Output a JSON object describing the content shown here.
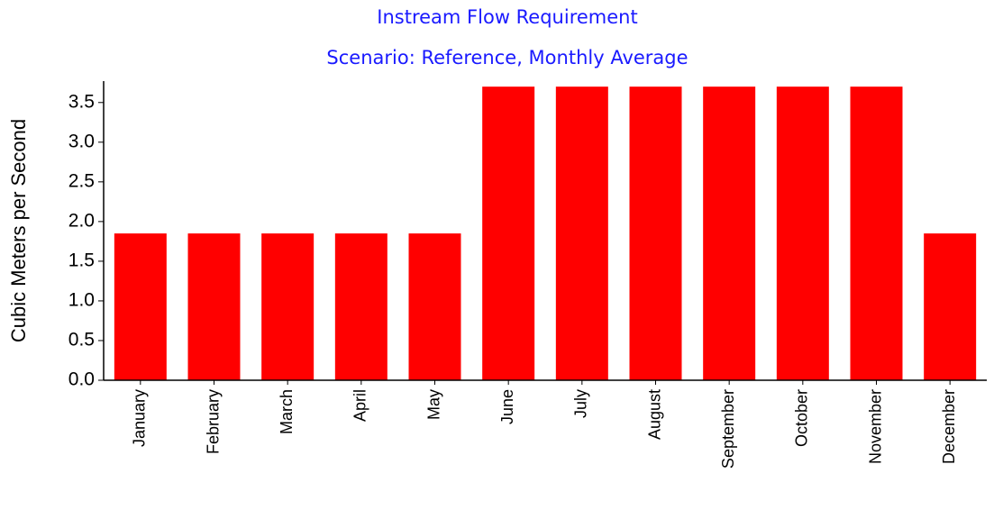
{
  "chart_data": {
    "type": "bar",
    "title": "Instream Flow Requirement",
    "subtitle": "Scenario: Reference,  Monthly Average",
    "y_label": "Cubic Meters per Second",
    "categories": [
      "January",
      "February",
      "March",
      "April",
      "May",
      "June",
      "July",
      "August",
      "September",
      "October",
      "November",
      "December"
    ],
    "values": [
      1.85,
      1.85,
      1.85,
      1.85,
      1.85,
      3.7,
      3.7,
      3.7,
      3.7,
      3.7,
      3.7,
      1.85
    ],
    "color": "#ff0000",
    "title_color": "#1a1aff",
    "ylim": [
      0,
      3.77
    ],
    "yticks": [
      {
        "value": 0,
        "label": "0.0"
      },
      0.5,
      {
        "value": 1,
        "label": "1.0"
      },
      1.5,
      {
        "value": 2,
        "label": "2.0"
      },
      2.5,
      {
        "value": 3,
        "label": "3.0"
      },
      3.5
    ],
    "grid": false
  }
}
